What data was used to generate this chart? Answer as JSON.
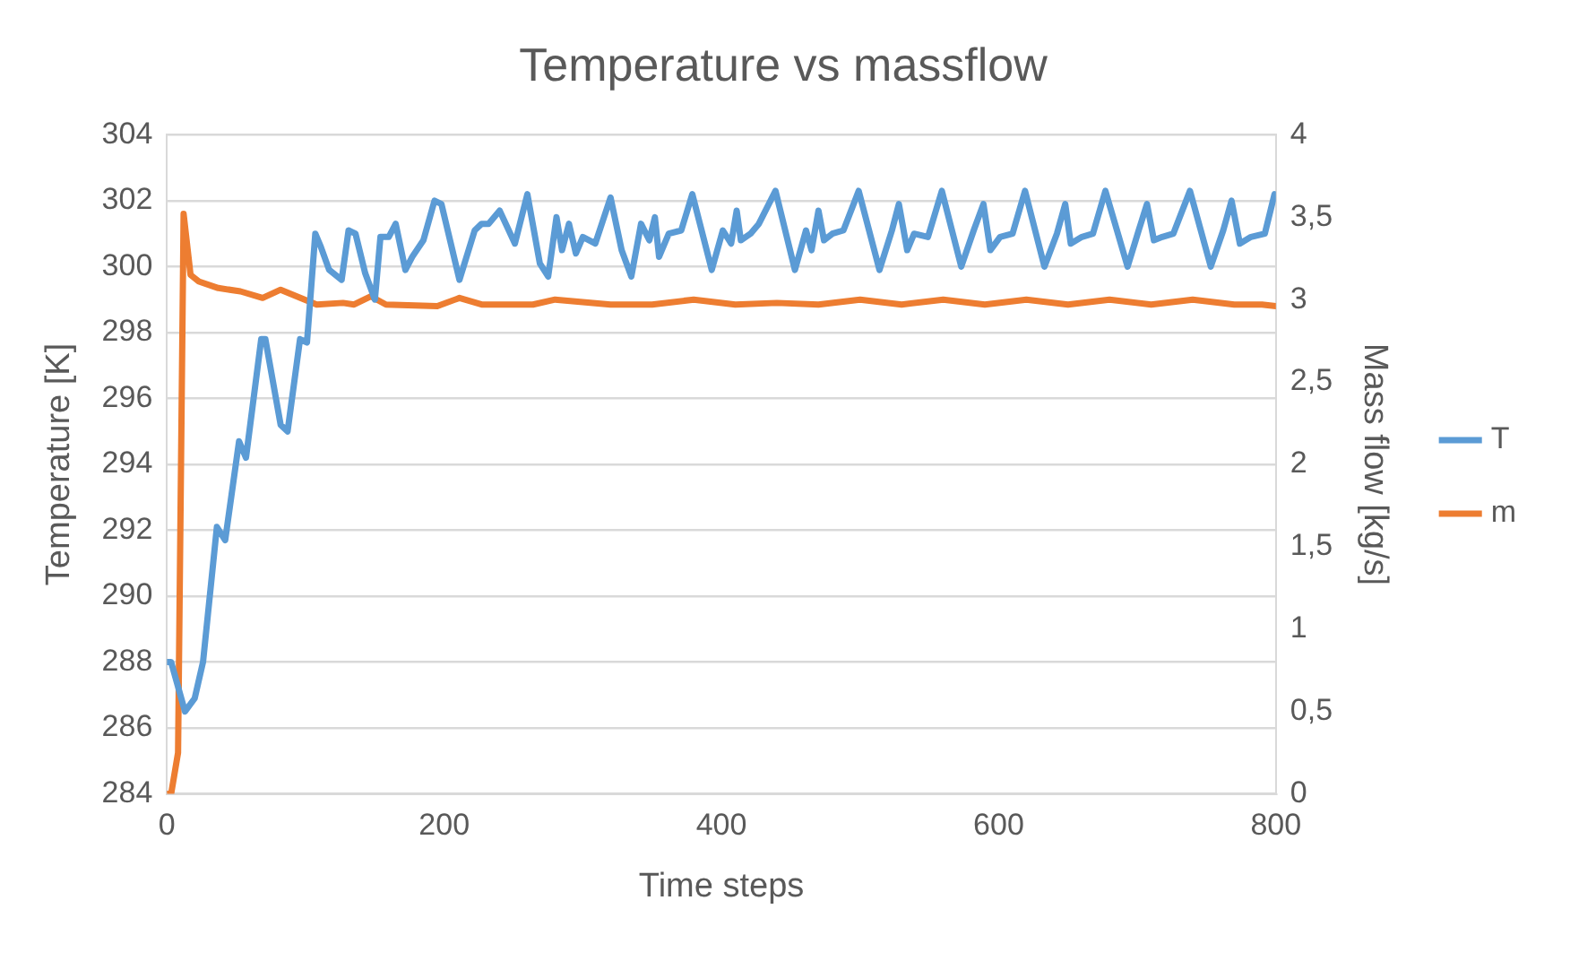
{
  "chart_data": {
    "type": "line",
    "title": "Temperature vs massflow",
    "xlabel": "Time steps",
    "ylabel": "Temperature [K]",
    "y2label": "Mass flow [kg/s]",
    "xlim": [
      0,
      800
    ],
    "xticks": [
      0,
      200,
      400,
      600,
      800
    ],
    "ylim": [
      284,
      304
    ],
    "yticks": [
      284,
      286,
      288,
      290,
      292,
      294,
      296,
      298,
      300,
      302,
      304
    ],
    "y2lim": [
      0,
      4
    ],
    "y2ticks": [
      0,
      {
        "value": 0.5,
        "label": "0,5"
      },
      1,
      {
        "value": 1.5,
        "label": "1,5"
      },
      2,
      {
        "value": 2.5,
        "label": "2,5"
      },
      3,
      {
        "value": 3.5,
        "label": "3,5"
      },
      4
    ],
    "grid": "y",
    "legend": "right",
    "marker": "none",
    "line_style": "solid",
    "series": [
      {
        "name": "T",
        "color": "#5b9bd5",
        "x": [
          0,
          3,
          13,
          20,
          26,
          36,
          42,
          52,
          57,
          68,
          71,
          82,
          87,
          96,
          101,
          107,
          111,
          117,
          126,
          131,
          136,
          143,
          150,
          154,
          160,
          165,
          172,
          177,
          185,
          193,
          198,
          211,
          222,
          227,
          232,
          240,
          251,
          260,
          269,
          275,
          281,
          285,
          290,
          295,
          300,
          309,
          320,
          328,
          335,
          342,
          348,
          352,
          355,
          362,
          371,
          379,
          393,
          401,
          407,
          411,
          414,
          421,
          427,
          439,
          453,
          461,
          465,
          470,
          474,
          480,
          488,
          499,
          514,
          523,
          528,
          534,
          539,
          549,
          559,
          573,
          582,
          589,
          594,
          601,
          610,
          619,
          633,
          642,
          648,
          652,
          660,
          668,
          677,
          693,
          701,
          707,
          712,
          718,
          726,
          738,
          753,
          762,
          768,
          774,
          782,
          792,
          799
        ],
        "values": [
          288.0,
          288.0,
          286.5,
          286.9,
          288.0,
          292.1,
          291.7,
          294.7,
          294.2,
          297.8,
          297.8,
          295.2,
          295.0,
          297.8,
          297.7,
          301.0,
          300.6,
          299.9,
          299.6,
          301.1,
          301.0,
          299.8,
          299.0,
          300.9,
          300.9,
          301.3,
          299.9,
          300.3,
          300.8,
          302.0,
          301.9,
          299.6,
          301.1,
          301.3,
          301.3,
          301.7,
          300.7,
          302.2,
          300.1,
          299.7,
          301.5,
          300.5,
          301.3,
          300.4,
          300.9,
          300.7,
          302.1,
          300.5,
          299.7,
          301.3,
          300.8,
          301.5,
          300.3,
          301.0,
          301.1,
          302.2,
          299.9,
          301.1,
          300.7,
          301.7,
          300.8,
          301.0,
          301.3,
          302.3,
          299.9,
          301.1,
          300.5,
          301.7,
          300.8,
          301.0,
          301.1,
          302.3,
          299.9,
          301.1,
          301.9,
          300.5,
          301.0,
          300.9,
          302.3,
          300.0,
          301.1,
          301.9,
          300.5,
          300.9,
          301.0,
          302.3,
          300.0,
          301.0,
          301.9,
          300.7,
          300.9,
          301.0,
          302.3,
          300.0,
          301.1,
          301.9,
          300.8,
          300.9,
          301.0,
          302.3,
          300.0,
          301.1,
          302.0,
          300.7,
          300.9,
          301.0,
          302.2
        ]
      },
      {
        "name": "m",
        "color": "#ed7d31",
        "axis": "y2",
        "x": [
          0,
          3,
          8,
          12,
          17,
          23,
          37,
          53,
          69,
          82,
          108,
          127,
          135,
          147,
          158,
          195,
          211,
          227,
          264,
          280,
          320,
          350,
          380,
          410,
          440,
          470,
          500,
          530,
          560,
          590,
          620,
          650,
          680,
          710,
          740,
          770,
          790,
          800
        ],
        "values": [
          0,
          0,
          0.25,
          3.52,
          3.15,
          3.11,
          3.07,
          3.05,
          3.01,
          3.06,
          2.97,
          2.98,
          2.97,
          3.02,
          2.97,
          2.96,
          3.01,
          2.97,
          2.97,
          3.0,
          2.97,
          2.97,
          3.0,
          2.97,
          2.98,
          2.97,
          3.0,
          2.97,
          3.0,
          2.97,
          3.0,
          2.97,
          3.0,
          2.97,
          3.0,
          2.97,
          2.97,
          2.96
        ]
      }
    ]
  }
}
